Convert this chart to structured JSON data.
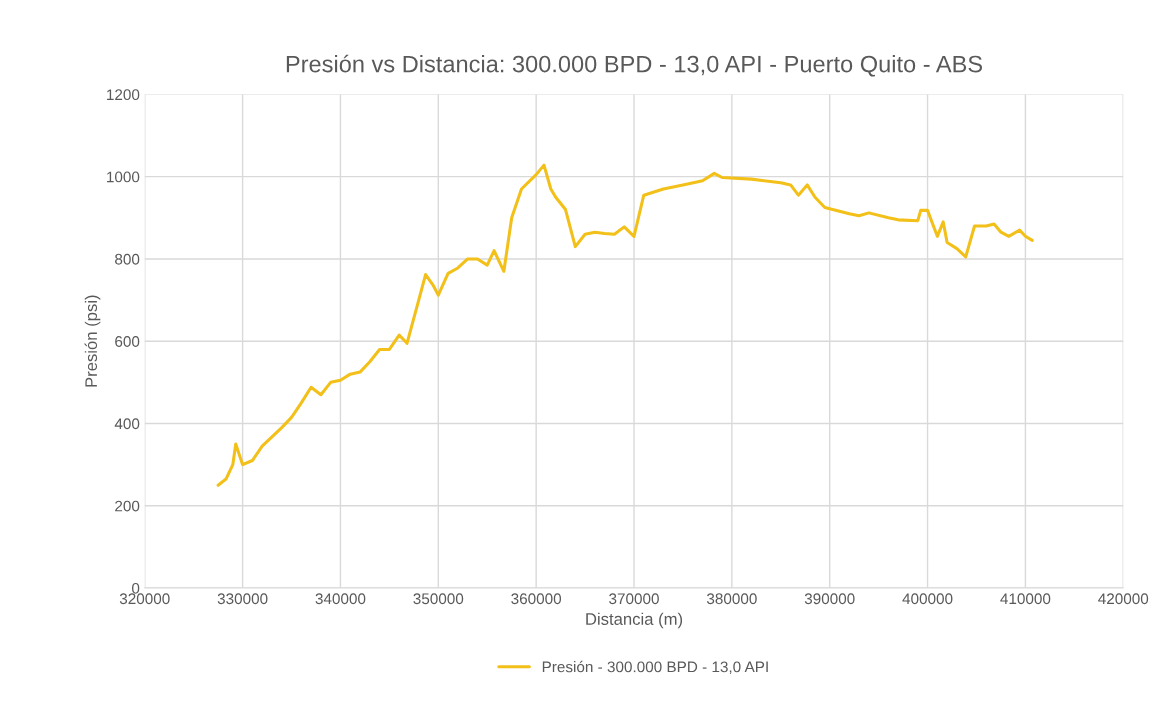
{
  "chart_data": {
    "type": "line",
    "title": "Presión vs Distancia: 300.000 BPD - 13,0 API - Puerto Quito - ABS",
    "xlabel": "Distancia (m)",
    "ylabel": "Presión (psi)",
    "x": [
      327500,
      328300,
      329000,
      329300,
      330000,
      331000,
      332000,
      334000,
      335000,
      336000,
      337000,
      338000,
      339000,
      340000,
      341000,
      342000,
      343000,
      344000,
      345000,
      346000,
      346800,
      348000,
      348700,
      349500,
      350000,
      351000,
      352000,
      353000,
      354000,
      355000,
      355700,
      356700,
      357500,
      358500,
      360000,
      360800,
      361500,
      362000,
      363000,
      364000,
      365000,
      366000,
      367000,
      368000,
      369000,
      370000,
      371000,
      373000,
      375000,
      377000,
      378200,
      379000,
      382000,
      385000,
      386000,
      386800,
      387700,
      388500,
      389500,
      392000,
      393000,
      394000,
      396000,
      397000,
      399000,
      399300,
      400000,
      400600,
      401000,
      401600,
      402000,
      403000,
      403900,
      404800,
      406000,
      406800,
      407500,
      408300,
      409400,
      410000,
      410700
    ],
    "series": [
      {
        "name": "Presión - 300.000 BPD - 13,0 API",
        "color": "#f2c018",
        "values": [
          250,
          265,
          300,
          350,
          300,
          310,
          345,
          390,
          415,
          450,
          488,
          470,
          500,
          505,
          520,
          525,
          550,
          580,
          580,
          615,
          595,
          700,
          762,
          735,
          712,
          765,
          778,
          800,
          800,
          785,
          820,
          770,
          900,
          970,
          1005,
          1028,
          970,
          950,
          920,
          830,
          860,
          865,
          862,
          860,
          878,
          855,
          955,
          970,
          980,
          990,
          1008,
          998,
          994,
          985,
          980,
          955,
          980,
          950,
          925,
          910,
          905,
          912,
          900,
          895,
          893,
          918,
          918,
          880,
          855,
          890,
          840,
          825,
          805,
          880,
          880,
          885,
          865,
          855,
          870,
          855,
          845
        ]
      }
    ],
    "xlim": [
      320000,
      420000
    ],
    "xticks": [
      320000,
      330000,
      340000,
      350000,
      360000,
      370000,
      380000,
      390000,
      400000,
      410000,
      420000
    ],
    "ylim": [
      0,
      1200
    ],
    "yticks": [
      0,
      200,
      400,
      600,
      800,
      1000,
      1200
    ],
    "grid": true,
    "legend": "bottom",
    "marker": "none",
    "line_style": "solid"
  }
}
